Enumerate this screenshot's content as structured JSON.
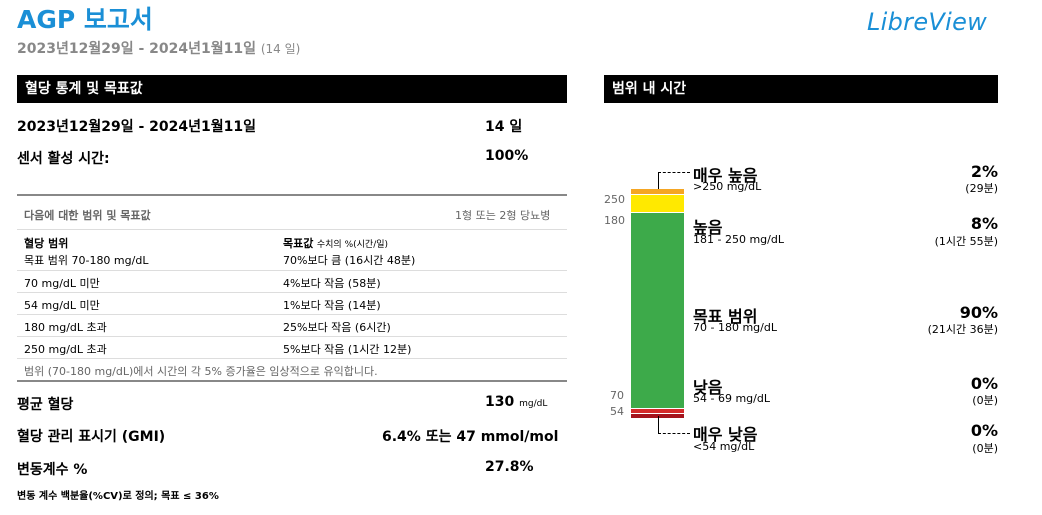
{
  "header": {
    "title": "AGP 보고서",
    "date_range": "2023년12월29일 - 2024년1월11일",
    "days": "(14 일)",
    "logo": "LibreView"
  },
  "left": {
    "banner": "혈당 통계 및 목표값",
    "period_label": "2023년12월29일 - 2024년1월11일",
    "period_value": "14 일",
    "sensor_label": "센서 활성 시간:",
    "sensor_value": "100%",
    "targets": {
      "header_left": "다음에 대한 범위 및 목표값",
      "header_right": "1형 또는 2형 당뇨병",
      "col1": "혈당 범위",
      "col2": "목표값",
      "col2_note": "수치의 %(시간/일)",
      "rows": [
        {
          "range": "목표 범위 70-180 mg/dL",
          "target": "70%보다 큼 (16시간 48분)"
        },
        {
          "range": "70 mg/dL 미만",
          "target": "4%보다 작음 (58분)"
        },
        {
          "range": "54 mg/dL 미만",
          "target": "1%보다 작음 (14분)"
        },
        {
          "range": "180 mg/dL 초과",
          "target": "25%보다 작음 (6시간)"
        },
        {
          "range": "250 mg/dL 초과",
          "target": "5%보다 작음 (1시간 12분)"
        }
      ],
      "footnote": "범위 (70-180 mg/dL)에서 시간의 각 5% 증가율은 임상적으로 유익합니다."
    },
    "avg_label": "평균 혈당",
    "avg_value": "130",
    "avg_unit": "mg/dL",
    "gmi_label": "혈당 관리 표시기 (GMI)",
    "gmi_value": "6.4% 또는 47 mmol/mol",
    "cv_label": "변동계수 %",
    "cv_value": "27.8%",
    "cv_note": "변동 계수 백분율(%CV)로 정의; 목표 ≤ 36%"
  },
  "right": {
    "banner": "범위 내 시간",
    "ticks": [
      "250",
      "180",
      "70",
      "54"
    ],
    "categories": [
      {
        "name": "매우 높음",
        "range": ">250 mg/dL",
        "percent": "2%",
        "time": "(29분)",
        "color": "#f5a623",
        "fraction": 0.02
      },
      {
        "name": "높음",
        "range": "181 - 250 mg/dL",
        "percent": "8%",
        "time": "(1시간 55분)",
        "color": "#ffe900",
        "fraction": 0.08
      },
      {
        "name": "목표 범위",
        "range": "70 - 180 mg/dL",
        "percent": "90%",
        "time": "(21시간 36분)",
        "color": "#3daa4a",
        "fraction": 0.9
      },
      {
        "name": "낮음",
        "range": "54 - 69 mg/dL",
        "percent": "0%",
        "time": "(0분)",
        "color": "#d42a2a",
        "fraction": 0.0
      },
      {
        "name": "매우 낮음",
        "range": "<54 mg/dL",
        "percent": "0%",
        "time": "(0분)",
        "color": "#a5141d",
        "fraction": 0.0
      }
    ]
  }
}
